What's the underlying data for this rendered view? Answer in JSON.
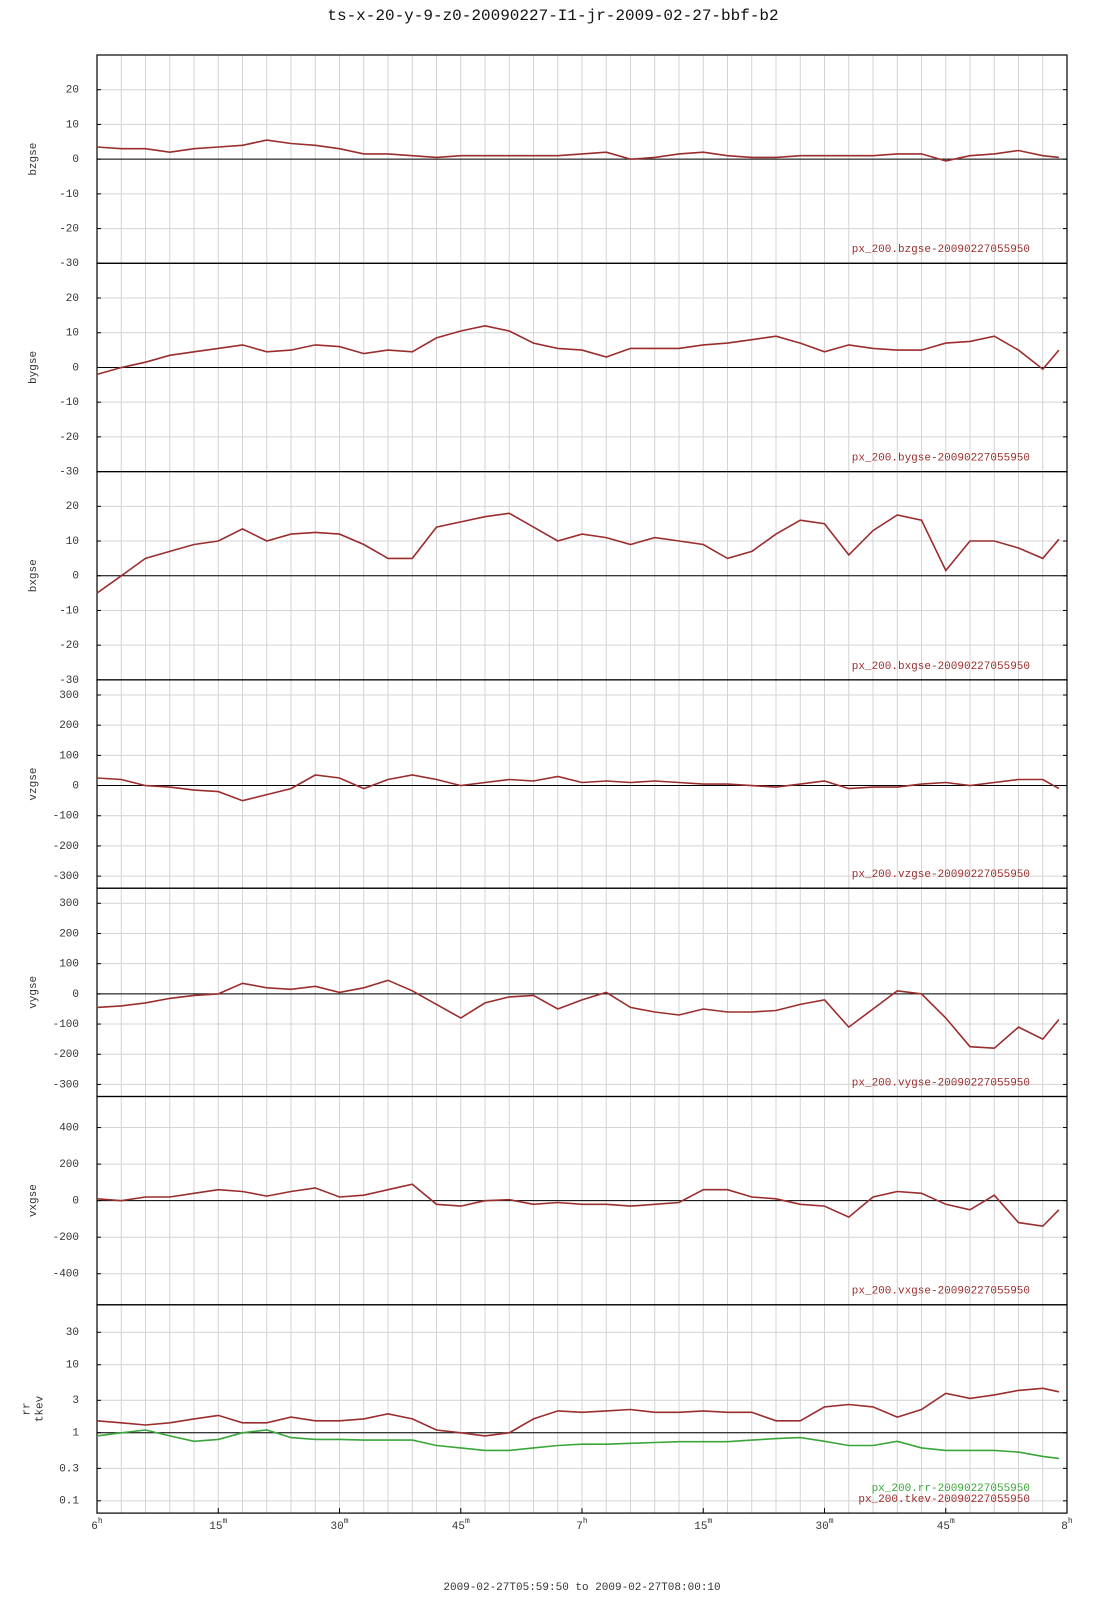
{
  "title": "ts-x-20-y-9-z0-20090227-I1-jr-2009-02-27-bbf-b2",
  "xlabel": "2009-02-27T05:59:50 to 2009-02-27T08:00:10",
  "chart_data": [
    {
      "type": "line",
      "ylabel": [
        "bzgse"
      ],
      "xlim": [
        0,
        120
      ],
      "xminor": 3,
      "ylim": [
        -30,
        30
      ],
      "yticks": [
        -30,
        -20,
        -10,
        0,
        10,
        20
      ],
      "reference": 0,
      "x": [
        0,
        3,
        6,
        9,
        12,
        15,
        18,
        21,
        24,
        27,
        30,
        33,
        36,
        39,
        42,
        45,
        48,
        51,
        54,
        57,
        60,
        63,
        66,
        69,
        72,
        75,
        78,
        81,
        84,
        87,
        90,
        93,
        96,
        99,
        102,
        105,
        108,
        111,
        114,
        117,
        119
      ],
      "series": [
        {
          "name": "px_200.bzgse-20090227055950",
          "color": "#9b2d2d",
          "values": [
            3.5,
            3,
            3,
            2,
            3,
            3.5,
            4,
            5.5,
            4.5,
            4,
            3,
            1.5,
            1.5,
            1,
            0.5,
            1,
            1,
            1,
            1,
            1,
            1.5,
            2,
            0,
            0.5,
            1.5,
            2,
            1,
            0.5,
            0.5,
            1,
            1,
            1,
            1,
            1.5,
            1.5,
            -0.5,
            1,
            1.5,
            2.5,
            1,
            0.5
          ]
        }
      ]
    },
    {
      "type": "line",
      "ylabel": [
        "bygse"
      ],
      "xlim": [
        0,
        120
      ],
      "xminor": 3,
      "ylim": [
        -30,
        30
      ],
      "yticks": [
        -30,
        -20,
        -10,
        0,
        10,
        20
      ],
      "reference": 0,
      "x": [
        0,
        3,
        6,
        9,
        12,
        15,
        18,
        21,
        24,
        27,
        30,
        33,
        36,
        39,
        42,
        45,
        48,
        51,
        54,
        57,
        60,
        63,
        66,
        69,
        72,
        75,
        78,
        81,
        84,
        87,
        90,
        93,
        96,
        99,
        102,
        105,
        108,
        111,
        114,
        117,
        119
      ],
      "series": [
        {
          "name": "px_200.bygse-20090227055950",
          "color": "#9b2d2d",
          "values": [
            -2,
            0,
            1.5,
            3.5,
            4.5,
            5.5,
            6.5,
            4.5,
            5,
            6.5,
            6,
            4,
            5,
            4.5,
            8.5,
            10.5,
            12,
            10.5,
            7,
            5.5,
            5,
            3,
            5.5,
            5.5,
            5.5,
            6.5,
            7,
            8,
            9,
            7,
            4.5,
            6.5,
            5.5,
            5,
            5,
            7,
            7.5,
            9,
            5,
            -0.5,
            5
          ]
        }
      ]
    },
    {
      "type": "line",
      "ylabel": [
        "bxgse"
      ],
      "xlim": [
        0,
        120
      ],
      "xminor": 3,
      "ylim": [
        -30,
        30
      ],
      "yticks": [
        -30,
        -20,
        -10,
        0,
        10,
        20
      ],
      "reference": 0,
      "x": [
        0,
        3,
        6,
        9,
        12,
        15,
        18,
        21,
        24,
        27,
        30,
        33,
        36,
        39,
        42,
        45,
        48,
        51,
        54,
        57,
        60,
        63,
        66,
        69,
        72,
        75,
        78,
        81,
        84,
        87,
        90,
        93,
        96,
        99,
        102,
        105,
        108,
        111,
        114,
        117,
        119
      ],
      "series": [
        {
          "name": "px_200.bxgse-20090227055950",
          "color": "#9b2d2d",
          "values": [
            -5,
            0,
            5,
            7,
            9,
            10,
            13.5,
            10,
            12,
            12.5,
            12,
            9,
            5,
            5,
            14,
            15.5,
            17,
            18,
            14,
            10,
            12,
            11,
            9,
            11,
            10,
            9,
            5,
            7,
            12,
            16,
            15,
            6,
            13,
            17.5,
            16,
            1.5,
            10,
            10,
            8,
            5,
            10.5
          ]
        }
      ]
    },
    {
      "type": "line",
      "ylabel": [
        "vzgse"
      ],
      "xlim": [
        0,
        120
      ],
      "xminor": 3,
      "ylim": [
        -340,
        350
      ],
      "yticks": [
        -300,
        -200,
        -100,
        0,
        100,
        200,
        300
      ],
      "reference": 0,
      "x": [
        0,
        3,
        6,
        9,
        12,
        15,
        18,
        21,
        24,
        27,
        30,
        33,
        36,
        39,
        42,
        45,
        48,
        51,
        54,
        57,
        60,
        63,
        66,
        69,
        72,
        75,
        78,
        81,
        84,
        87,
        90,
        93,
        96,
        99,
        102,
        105,
        108,
        111,
        114,
        117,
        119
      ],
      "series": [
        {
          "name": "px_200.vzgse-20090227055950",
          "color": "#9b2d2d",
          "values": [
            25,
            20,
            0,
            -5,
            -15,
            -20,
            -50,
            -30,
            -10,
            35,
            25,
            -10,
            20,
            35,
            20,
            0,
            10,
            20,
            15,
            30,
            10,
            15,
            10,
            15,
            10,
            5,
            5,
            0,
            -5,
            5,
            15,
            -10,
            -5,
            -5,
            5,
            10,
            0,
            10,
            20,
            20,
            -10
          ]
        }
      ]
    },
    {
      "type": "line",
      "ylabel": [
        "vygse"
      ],
      "xlim": [
        0,
        120
      ],
      "xminor": 3,
      "ylim": [
        -340,
        350
      ],
      "yticks": [
        -300,
        -200,
        -100,
        0,
        100,
        200,
        300
      ],
      "reference": 0,
      "x": [
        0,
        3,
        6,
        9,
        12,
        15,
        18,
        21,
        24,
        27,
        30,
        33,
        36,
        39,
        42,
        45,
        48,
        51,
        54,
        57,
        60,
        63,
        66,
        69,
        72,
        75,
        78,
        81,
        84,
        87,
        90,
        93,
        96,
        99,
        102,
        105,
        108,
        111,
        114,
        117,
        119
      ],
      "series": [
        {
          "name": "px_200.vygse-20090227055950",
          "color": "#9b2d2d",
          "values": [
            -45,
            -40,
            -30,
            -15,
            -5,
            0,
            35,
            20,
            15,
            25,
            5,
            20,
            45,
            10,
            -35,
            -80,
            -30,
            -10,
            -5,
            -50,
            -20,
            5,
            -45,
            -60,
            -70,
            -50,
            -60,
            -60,
            -55,
            -35,
            -20,
            -110,
            -50,
            10,
            0,
            -80,
            -175,
            -180,
            -110,
            -150,
            -85
          ]
        }
      ]
    },
    {
      "type": "line",
      "ylabel": [
        "vxgse"
      ],
      "xlim": [
        0,
        120
      ],
      "xminor": 3,
      "ylim": [
        -570,
        570
      ],
      "yticks": [
        -400,
        -200,
        0,
        200,
        400
      ],
      "reference": 0,
      "x": [
        0,
        3,
        6,
        9,
        12,
        15,
        18,
        21,
        24,
        27,
        30,
        33,
        36,
        39,
        42,
        45,
        48,
        51,
        54,
        57,
        60,
        63,
        66,
        69,
        72,
        75,
        78,
        81,
        84,
        87,
        90,
        93,
        96,
        99,
        102,
        105,
        108,
        111,
        114,
        117,
        119
      ],
      "series": [
        {
          "name": "px_200.vxgse-20090227055950",
          "color": "#9b2d2d",
          "values": [
            10,
            0,
            20,
            20,
            40,
            60,
            50,
            25,
            50,
            70,
            20,
            30,
            60,
            90,
            -20,
            -30,
            0,
            5,
            -20,
            -10,
            -20,
            -20,
            -30,
            -20,
            -10,
            60,
            60,
            20,
            10,
            -20,
            -30,
            -90,
            20,
            50,
            40,
            -20,
            -50,
            30,
            -120,
            -140,
            -50
          ]
        }
      ]
    },
    {
      "type": "line",
      "ylabel": [
        "rr",
        "tkev"
      ],
      "log": true,
      "xlim": [
        0,
        120
      ],
      "xminor": 3,
      "ylim": [
        0.066,
        76
      ],
      "yticks": [
        0.1,
        0.3,
        1,
        3,
        10,
        30
      ],
      "reference": 1,
      "xticks": [
        {
          "value": 0,
          "label": "6",
          "unit": "h"
        },
        {
          "value": 15,
          "label": "15",
          "unit": "m"
        },
        {
          "value": 30,
          "label": "30",
          "unit": "m"
        },
        {
          "value": 45,
          "label": "45",
          "unit": "m"
        },
        {
          "value": 60,
          "label": "7",
          "unit": "h"
        },
        {
          "value": 75,
          "label": "15",
          "unit": "m"
        },
        {
          "value": 90,
          "label": "30",
          "unit": "m"
        },
        {
          "value": 105,
          "label": "45",
          "unit": "m"
        },
        {
          "value": 120,
          "label": "8",
          "unit": "h"
        }
      ],
      "x": [
        0,
        3,
        6,
        9,
        12,
        15,
        18,
        21,
        24,
        27,
        30,
        33,
        36,
        39,
        42,
        45,
        48,
        51,
        54,
        57,
        60,
        63,
        66,
        69,
        72,
        75,
        78,
        81,
        84,
        87,
        90,
        93,
        96,
        99,
        102,
        105,
        108,
        111,
        114,
        117,
        119
      ],
      "series": [
        {
          "name": "px_200.rr-20090227055950",
          "color": "#3aa63a",
          "values": [
            0.9,
            1,
            1.1,
            0.9,
            0.75,
            0.8,
            1,
            1.1,
            0.85,
            0.8,
            0.8,
            0.78,
            0.78,
            0.78,
            0.65,
            0.6,
            0.55,
            0.55,
            0.6,
            0.65,
            0.68,
            0.68,
            0.7,
            0.72,
            0.74,
            0.74,
            0.74,
            0.78,
            0.82,
            0.85,
            0.75,
            0.65,
            0.65,
            0.75,
            0.6,
            0.55,
            0.55,
            0.55,
            0.52,
            0.45,
            0.42
          ]
        },
        {
          "name": "px_200.tkev-20090227055950",
          "color": "#9b2d2d",
          "values": [
            1.5,
            1.4,
            1.3,
            1.4,
            1.6,
            1.8,
            1.4,
            1.4,
            1.7,
            1.5,
            1.5,
            1.6,
            1.9,
            1.6,
            1.1,
            1,
            0.9,
            1,
            1.6,
            2.1,
            2,
            2.1,
            2.2,
            2,
            2,
            2.1,
            2,
            2,
            1.5,
            1.5,
            2.4,
            2.6,
            2.4,
            1.7,
            2.2,
            3.8,
            3.2,
            3.6,
            4.2,
            4.5,
            4
          ]
        }
      ]
    }
  ]
}
